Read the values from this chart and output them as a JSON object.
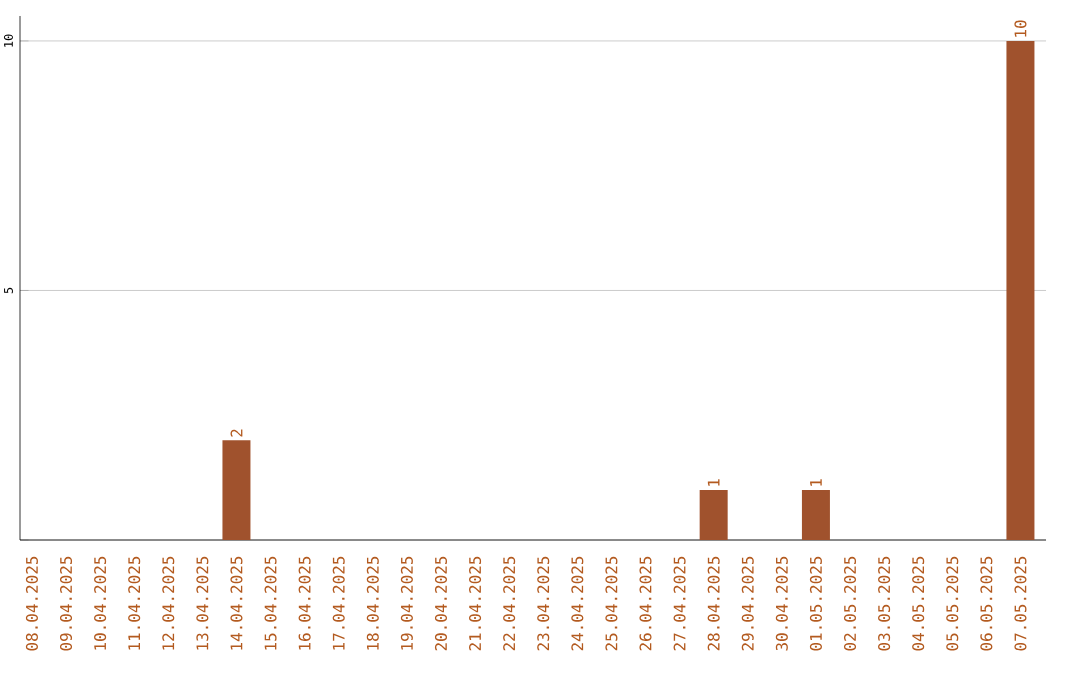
{
  "chart_data": {
    "type": "bar",
    "categories": [
      "08.04.2025",
      "09.04.2025",
      "10.04.2025",
      "11.04.2025",
      "12.04.2025",
      "13.04.2025",
      "14.04.2025",
      "15.04.2025",
      "16.04.2025",
      "17.04.2025",
      "18.04.2025",
      "19.04.2025",
      "20.04.2025",
      "21.04.2025",
      "22.04.2025",
      "23.04.2025",
      "24.04.2025",
      "25.04.2025",
      "26.04.2025",
      "27.04.2025",
      "28.04.2025",
      "29.04.2025",
      "30.04.2025",
      "01.05.2025",
      "02.05.2025",
      "03.05.2025",
      "04.05.2025",
      "05.05.2025",
      "06.05.2025",
      "07.05.2025"
    ],
    "values": [
      0,
      0,
      0,
      0,
      0,
      0,
      2,
      0,
      0,
      0,
      0,
      0,
      0,
      0,
      0,
      0,
      0,
      0,
      0,
      0,
      1,
      0,
      0,
      1,
      0,
      0,
      0,
      0,
      0,
      10
    ],
    "value_labels": [
      null,
      null,
      null,
      null,
      null,
      null,
      "2",
      null,
      null,
      null,
      null,
      null,
      null,
      null,
      null,
      null,
      null,
      null,
      null,
      null,
      "1",
      null,
      null,
      "1",
      null,
      null,
      null,
      null,
      null,
      "10"
    ],
    "color": "#a0522d",
    "ylim": [
      0,
      10.5
    ],
    "yticks": [
      {
        "value": 0,
        "label": null
      },
      5,
      10
    ],
    "grid": "y"
  }
}
